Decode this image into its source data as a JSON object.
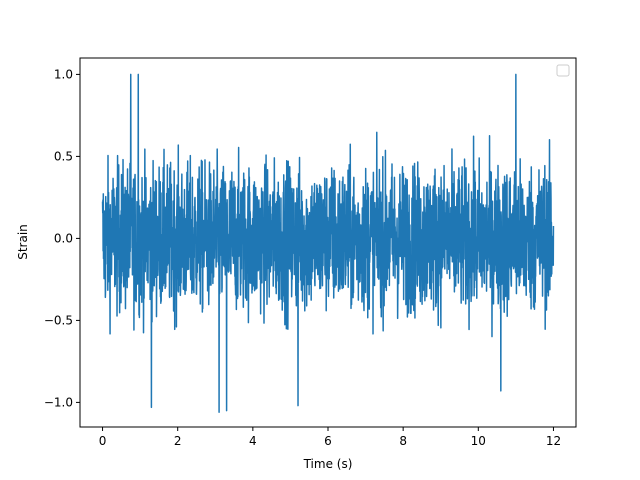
{
  "chart_data": {
    "type": "line",
    "title": "",
    "xlabel": "Time (s)",
    "ylabel": "Strain",
    "xlim": [
      -0.6,
      12.6
    ],
    "ylim": [
      -1.15,
      1.1
    ],
    "x_ticks": [
      0,
      2,
      4,
      6,
      8,
      10,
      12
    ],
    "x_tick_labels": [
      "0",
      "2",
      "4",
      "6",
      "8",
      "10",
      "12"
    ],
    "y_ticks": [
      -1.0,
      -0.5,
      0.0,
      0.5,
      1.0
    ],
    "y_tick_labels": [
      "−1.0",
      "−0.5",
      "0.0",
      "0.5",
      "1.0"
    ],
    "grid": false,
    "legend": {
      "position": "top-right",
      "entries": []
    },
    "series": [
      {
        "color": "#1f77b4",
        "x_range": [
          0,
          12
        ],
        "typical_envelope": [
          -0.55,
          0.6
        ],
        "peak_max": 1.0,
        "peak_min": -1.06,
        "notable_peaks": [
          {
            "x": 0.75,
            "y": 1.0
          },
          {
            "x": 0.95,
            "y": 1.0
          },
          {
            "x": 11.0,
            "y": 1.0
          },
          {
            "x": 3.1,
            "y": -1.06
          },
          {
            "x": 3.3,
            "y": -1.05
          },
          {
            "x": 1.3,
            "y": -1.03
          },
          {
            "x": 5.2,
            "y": -1.02
          },
          {
            "x": 10.6,
            "y": -0.93
          }
        ]
      }
    ]
  }
}
